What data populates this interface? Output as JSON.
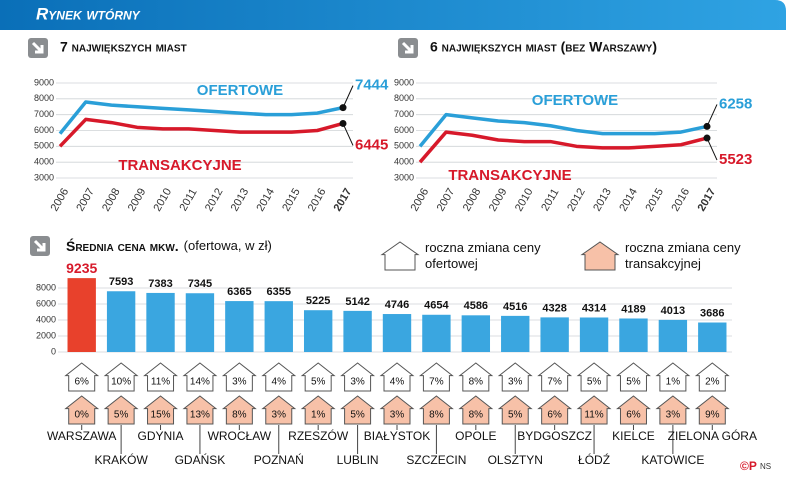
{
  "header": {
    "title": "Rynek wtórny"
  },
  "chart_data": [
    {
      "type": "line",
      "title": "7 największych miast",
      "categories": [
        "2006",
        "2007",
        "2008",
        "2009",
        "2010",
        "2011",
        "2012",
        "2013",
        "2014",
        "2015",
        "2016",
        "2017"
      ],
      "ylim": [
        3000,
        9000
      ],
      "yticks": [
        3000,
        4000,
        5000,
        6000,
        7000,
        8000,
        9000
      ],
      "grid": true,
      "series": [
        {
          "name": "OFERTOWE",
          "color": "#2a9fd8",
          "values": [
            5800,
            7800,
            7600,
            7500,
            7400,
            7300,
            7200,
            7100,
            7000,
            7000,
            7100,
            7444
          ]
        },
        {
          "name": "TRANSAKCYJNE",
          "color": "#d7192a",
          "values": [
            5000,
            6700,
            6500,
            6200,
            6100,
            6100,
            6000,
            5900,
            5900,
            5900,
            6000,
            6445
          ]
        }
      ]
    },
    {
      "type": "line",
      "title": "6 największych miast (bez Warszawy)",
      "categories": [
        "2006",
        "2007",
        "2008",
        "2009",
        "2010",
        "2011",
        "2012",
        "2013",
        "2014",
        "2015",
        "2016",
        "2017"
      ],
      "ylim": [
        3000,
        9000
      ],
      "yticks": [
        3000,
        4000,
        5000,
        6000,
        7000,
        8000,
        9000
      ],
      "grid": true,
      "series": [
        {
          "name": "OFERTOWE",
          "color": "#2a9fd8",
          "values": [
            5000,
            7000,
            6800,
            6600,
            6500,
            6300,
            6000,
            5800,
            5800,
            5800,
            5900,
            6258
          ]
        },
        {
          "name": "TRANSAKCYJNE",
          "color": "#d7192a",
          "values": [
            4000,
            5900,
            5700,
            5400,
            5300,
            5300,
            5000,
            4900,
            4900,
            5000,
            5100,
            5523
          ]
        }
      ]
    },
    {
      "type": "bar",
      "title": "Średnia cena mkw.",
      "subtitle": "(ofertowa, w zł)",
      "categories": [
        "WARSZAWA",
        "KRAKÓW",
        "GDYNIA",
        "GDAŃSK",
        "WROCŁAW",
        "POZNAŃ",
        "RZESZÓW",
        "LUBLIN",
        "BIAŁYSTOK",
        "SZCZECIN",
        "OPOLE",
        "OLSZTYN",
        "BYDGOSZCZ",
        "ŁÓDŹ",
        "KIELCE",
        "KATOWICE",
        "ZIELONA GÓRA"
      ],
      "values": [
        9235,
        7593,
        7383,
        7345,
        6365,
        6355,
        5225,
        5142,
        4746,
        4654,
        4586,
        4516,
        4328,
        4314,
        4189,
        4013,
        3686
      ],
      "colors": [
        "#e8412c",
        "#3aa6e0",
        "#3aa6e0",
        "#3aa6e0",
        "#3aa6e0",
        "#3aa6e0",
        "#3aa6e0",
        "#3aa6e0",
        "#3aa6e0",
        "#3aa6e0",
        "#3aa6e0",
        "#3aa6e0",
        "#3aa6e0",
        "#3aa6e0",
        "#3aa6e0",
        "#3aa6e0",
        "#3aa6e0"
      ],
      "label_colors": [
        "#d7192a",
        "#111",
        "#111",
        "#111",
        "#111",
        "#111",
        "#111",
        "#111",
        "#111",
        "#111",
        "#111",
        "#111",
        "#111",
        "#111",
        "#111",
        "#111",
        "#111"
      ],
      "ylim": [
        0,
        9500
      ],
      "yticks": [
        0,
        2000,
        4000,
        6000,
        8000
      ],
      "grid": true,
      "changes": [
        {
          "name": "roczna zmiana ceny ofertowej",
          "color": "#ffffff",
          "values": [
            6,
            10,
            11,
            14,
            3,
            4,
            5,
            3,
            4,
            7,
            8,
            3,
            7,
            5,
            5,
            1,
            2
          ],
          "value_labels": [
            "6%",
            "10%",
            "11%",
            "14%",
            "3%",
            "4%",
            "5%",
            "3%",
            "4%",
            "7%",
            "8%",
            "3%",
            "7%",
            "5%",
            "5%",
            "1%",
            "2%"
          ]
        },
        {
          "name": "roczna zmiana ceny transakcyjnej",
          "color": "#f7c1a8",
          "values": [
            0,
            5,
            15,
            13,
            8,
            3,
            1,
            5,
            3,
            8,
            8,
            5,
            6,
            11,
            6,
            3,
            9
          ],
          "value_labels": [
            "0%",
            "5%",
            "15%",
            "13%",
            "8%",
            "3%",
            "1%",
            "5%",
            "3%",
            "8%",
            "8%",
            "5%",
            "6%",
            "11%",
            "6%",
            "3%",
            "9%"
          ]
        }
      ]
    }
  ],
  "credit": "©P",
  "author": "NS"
}
